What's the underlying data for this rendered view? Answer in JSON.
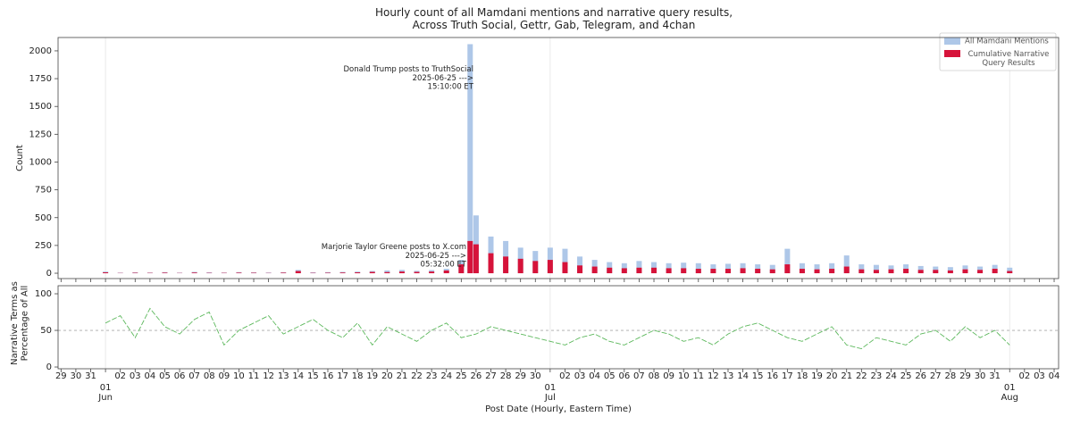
{
  "chart_data": [
    {
      "type": "bar",
      "title": "Hourly count of all Mamdani mentions and narrative query results,\nAcross Truth Social, Gettr, Gab, Telegram, and 4chan",
      "ylabel": "Count",
      "x": [
        3,
        4,
        5,
        6,
        7,
        8,
        9,
        10,
        11,
        12,
        13,
        14,
        15,
        16,
        17,
        18,
        19,
        20,
        21,
        22,
        23,
        24,
        25,
        26,
        27,
        27.6,
        28,
        29,
        30,
        31,
        32,
        33,
        34,
        35,
        36,
        37,
        38,
        39,
        40,
        41,
        42,
        43,
        44,
        45,
        46,
        47,
        48,
        49,
        50,
        51,
        52,
        53,
        54,
        55,
        56,
        57,
        58,
        59,
        60,
        61,
        62,
        63,
        64
      ],
      "series": [
        {
          "name": "All Mamdani Mentions",
          "color": "#aec7e8",
          "values": [
            15,
            5,
            8,
            6,
            10,
            5,
            12,
            8,
            6,
            10,
            8,
            6,
            9,
            30,
            8,
            10,
            12,
            15,
            20,
            25,
            30,
            22,
            28,
            40,
            120,
            2060,
            520,
            330,
            290,
            230,
            200,
            230,
            220,
            150,
            120,
            100,
            90,
            110,
            100,
            90,
            95,
            90,
            80,
            85,
            90,
            80,
            75,
            220,
            90,
            80,
            90,
            160,
            80,
            75,
            70,
            80,
            65,
            60,
            55,
            70,
            60,
            75,
            50
          ]
        },
        {
          "name": "Cumulative Narrative\nQuery Results",
          "color": "#d6133a",
          "values": [
            8,
            2,
            4,
            3,
            5,
            2,
            6,
            3,
            3,
            5,
            4,
            2,
            5,
            20,
            3,
            4,
            6,
            8,
            12,
            10,
            15,
            12,
            15,
            25,
            80,
            290,
            260,
            180,
            150,
            130,
            110,
            120,
            100,
            70,
            60,
            50,
            45,
            50,
            50,
            45,
            45,
            40,
            40,
            40,
            45,
            40,
            35,
            80,
            40,
            35,
            40,
            60,
            35,
            30,
            35,
            40,
            30,
            30,
            25,
            35,
            30,
            40,
            20
          ]
        }
      ],
      "xlim": [
        -0.2,
        67.3
      ],
      "ylim": [
        -48,
        2120
      ],
      "yticks": [
        0,
        250,
        500,
        750,
        1000,
        1250,
        1500,
        1750,
        2000
      ],
      "legend": "upper right",
      "annotations": [
        "Donald Trump posts to TruthSocial\n2025-06-25 --->\n15:10:00 ET",
        "Marjorie Taylor Greene posts to X.com\n2025-06-25 --->\n05:32:00 ET"
      ]
    },
    {
      "type": "line",
      "ylabel": "Narrative Terms as\nPercentage of All",
      "xlabel": "Post Date (Hourly, Eastern Time)",
      "x": [
        3,
        4,
        5,
        6,
        7,
        8,
        9,
        10,
        11,
        12,
        13,
        14,
        15,
        16,
        17,
        18,
        19,
        20,
        21,
        22,
        23,
        24,
        25,
        26,
        27,
        28,
        29,
        30,
        31,
        32,
        33,
        34,
        35,
        36,
        37,
        38,
        39,
        40,
        41,
        42,
        43,
        44,
        45,
        46,
        47,
        48,
        49,
        50,
        51,
        52,
        53,
        54,
        55,
        56,
        57,
        58,
        59,
        60,
        61,
        62,
        63,
        64
      ],
      "values": [
        60,
        70,
        40,
        80,
        55,
        45,
        65,
        75,
        30,
        50,
        60,
        70,
        45,
        55,
        65,
        50,
        40,
        60,
        30,
        55,
        45,
        35,
        50,
        60,
        40,
        45,
        55,
        50,
        45,
        40,
        35,
        30,
        40,
        45,
        35,
        30,
        40,
        50,
        45,
        35,
        40,
        30,
        45,
        55,
        60,
        50,
        40,
        35,
        45,
        55,
        30,
        25,
        40,
        35,
        30,
        45,
        50,
        35,
        55,
        40,
        50,
        30
      ],
      "color": "#5cb85c",
      "reference_line": 50,
      "xlim": [
        -0.2,
        67.3
      ],
      "ylim": [
        -2.4,
        111
      ],
      "yticks": [
        0,
        50,
        100
      ],
      "xticks": [
        {
          "value": 0,
          "label": "29"
        },
        {
          "value": 1,
          "label": "30"
        },
        {
          "value": 2,
          "label": "31"
        },
        {
          "value": 3,
          "label": "01"
        },
        {
          "value": 4,
          "label": "02"
        },
        {
          "value": 5,
          "label": "03"
        },
        {
          "value": 6,
          "label": "04"
        },
        {
          "value": 7,
          "label": "05"
        },
        {
          "value": 8,
          "label": "06"
        },
        {
          "value": 9,
          "label": "07"
        },
        {
          "value": 10,
          "label": "08"
        },
        {
          "value": 11,
          "label": "09"
        },
        {
          "value": 12,
          "label": "10"
        },
        {
          "value": 13,
          "label": "11"
        },
        {
          "value": 14,
          "label": "12"
        },
        {
          "value": 15,
          "label": "13"
        },
        {
          "value": 16,
          "label": "14"
        },
        {
          "value": 17,
          "label": "15"
        },
        {
          "value": 18,
          "label": "16"
        },
        {
          "value": 19,
          "label": "17"
        },
        {
          "value": 20,
          "label": "18"
        },
        {
          "value": 21,
          "label": "19"
        },
        {
          "value": 22,
          "label": "20"
        },
        {
          "value": 23,
          "label": "21"
        },
        {
          "value": 24,
          "label": "22"
        },
        {
          "value": 25,
          "label": "23"
        },
        {
          "value": 26,
          "label": "24"
        },
        {
          "value": 27,
          "label": "25"
        },
        {
          "value": 28,
          "label": "26"
        },
        {
          "value": 29,
          "label": "27"
        },
        {
          "value": 30,
          "label": "28"
        },
        {
          "value": 31,
          "label": "29"
        },
        {
          "value": 32,
          "label": "30"
        },
        {
          "value": 33,
          "label": "01"
        },
        {
          "value": 34,
          "label": "02"
        },
        {
          "value": 35,
          "label": "03"
        },
        {
          "value": 36,
          "label": "04"
        },
        {
          "value": 37,
          "label": "05"
        },
        {
          "value": 38,
          "label": "06"
        },
        {
          "value": 39,
          "label": "07"
        },
        {
          "value": 40,
          "label": "08"
        },
        {
          "value": 41,
          "label": "09"
        },
        {
          "value": 42,
          "label": "10"
        },
        {
          "value": 43,
          "label": "11"
        },
        {
          "value": 44,
          "label": "12"
        },
        {
          "value": 45,
          "label": "13"
        },
        {
          "value": 46,
          "label": "14"
        },
        {
          "value": 47,
          "label": "15"
        },
        {
          "value": 48,
          "label": "16"
        },
        {
          "value": 49,
          "label": "17"
        },
        {
          "value": 50,
          "label": "18"
        },
        {
          "value": 51,
          "label": "19"
        },
        {
          "value": 52,
          "label": "20"
        },
        {
          "value": 53,
          "label": "21"
        },
        {
          "value": 54,
          "label": "22"
        },
        {
          "value": 55,
          "label": "23"
        },
        {
          "value": 56,
          "label": "24"
        },
        {
          "value": 57,
          "label": "25"
        },
        {
          "value": 58,
          "label": "26"
        },
        {
          "value": 59,
          "label": "27"
        },
        {
          "value": 60,
          "label": "28"
        },
        {
          "value": 61,
          "label": "29"
        },
        {
          "value": 62,
          "label": "30"
        },
        {
          "value": 63,
          "label": "31"
        },
        {
          "value": 64,
          "label": "01"
        },
        {
          "value": 65,
          "label": "02"
        },
        {
          "value": 66,
          "label": "03"
        },
        {
          "value": 67,
          "label": "04"
        }
      ],
      "month_labels": [
        {
          "value": 3,
          "label": "Jun"
        },
        {
          "value": 33,
          "label": "Jul"
        },
        {
          "value": 64,
          "label": "Aug"
        }
      ]
    }
  ]
}
